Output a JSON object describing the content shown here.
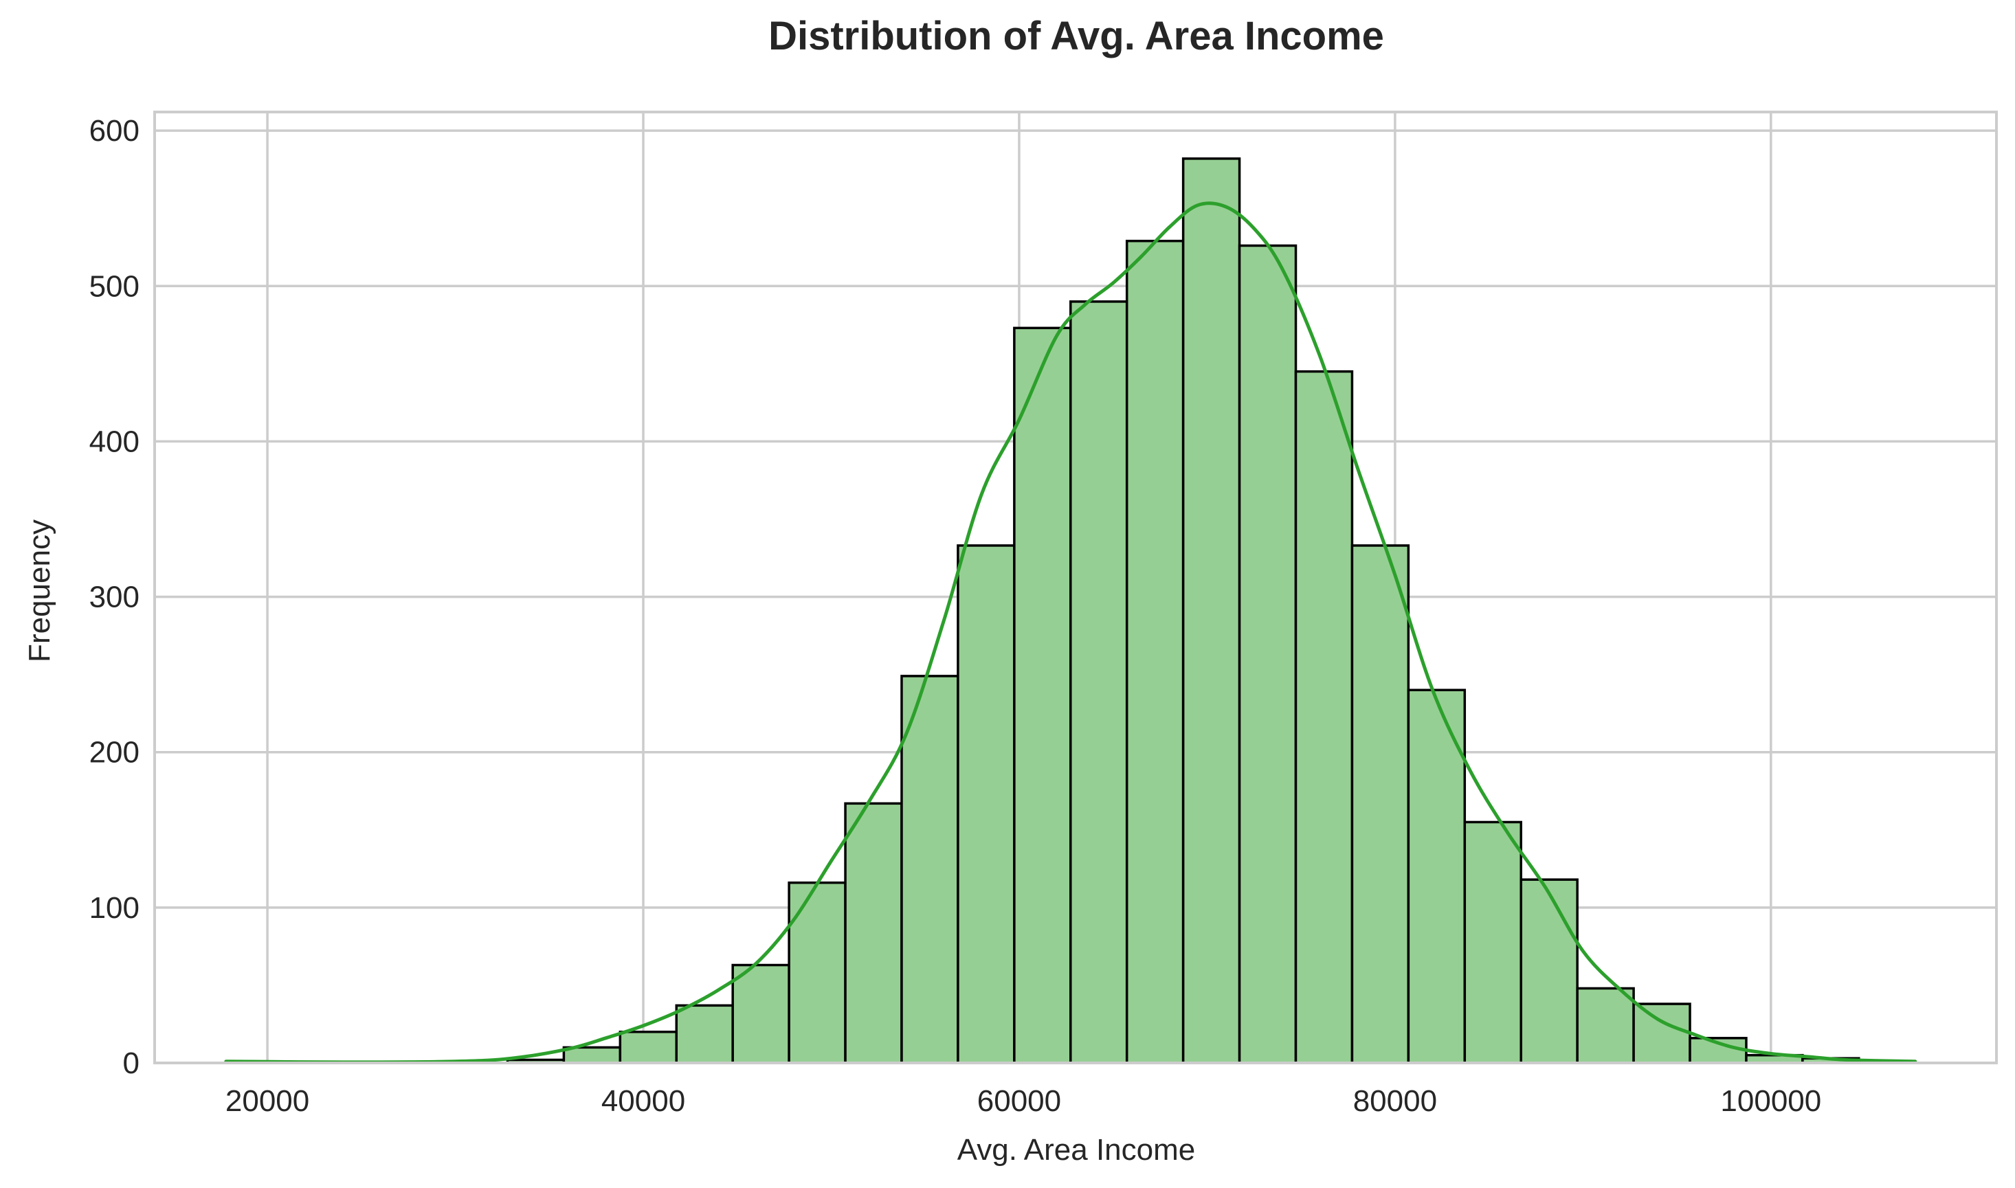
{
  "chart_data": {
    "type": "histogram",
    "title": "Distribution of Avg. Area Income",
    "xlabel": "Avg. Area Income",
    "ylabel": "Frequency",
    "xlim": [
      14000,
      112000
    ],
    "ylim": [
      0,
      612
    ],
    "x_ticks": [
      20000,
      40000,
      60000,
      80000,
      100000
    ],
    "y_ticks": [
      0,
      100,
      200,
      300,
      400,
      500,
      600
    ],
    "grid": true,
    "bar_color": "#96cf93",
    "edge_color": "#000000",
    "kde_color": "#2ca02c",
    "bins": [
      {
        "x0": 17797,
        "x1": 20792,
        "count": 1
      },
      {
        "x0": 20792,
        "x1": 23788,
        "count": 0
      },
      {
        "x0": 23788,
        "x1": 26784,
        "count": 0
      },
      {
        "x0": 26784,
        "x1": 29780,
        "count": 0
      },
      {
        "x0": 29780,
        "x1": 32776,
        "count": 0
      },
      {
        "x0": 32776,
        "x1": 35772,
        "count": 2
      },
      {
        "x0": 35772,
        "x1": 38768,
        "count": 10
      },
      {
        "x0": 38768,
        "x1": 41764,
        "count": 20
      },
      {
        "x0": 41764,
        "x1": 44760,
        "count": 37
      },
      {
        "x0": 44760,
        "x1": 47756,
        "count": 63
      },
      {
        "x0": 47756,
        "x1": 50752,
        "count": 116
      },
      {
        "x0": 50752,
        "x1": 53748,
        "count": 167
      },
      {
        "x0": 53748,
        "x1": 56744,
        "count": 249
      },
      {
        "x0": 56744,
        "x1": 59740,
        "count": 333
      },
      {
        "x0": 59740,
        "x1": 62736,
        "count": 473
      },
      {
        "x0": 62736,
        "x1": 65732,
        "count": 490
      },
      {
        "x0": 65732,
        "x1": 68728,
        "count": 529
      },
      {
        "x0": 68728,
        "x1": 71724,
        "count": 582
      },
      {
        "x0": 71724,
        "x1": 74720,
        "count": 526
      },
      {
        "x0": 74720,
        "x1": 77716,
        "count": 445
      },
      {
        "x0": 77716,
        "x1": 80712,
        "count": 333
      },
      {
        "x0": 80712,
        "x1": 83708,
        "count": 240
      },
      {
        "x0": 83708,
        "x1": 86704,
        "count": 155
      },
      {
        "x0": 86704,
        "x1": 89700,
        "count": 118
      },
      {
        "x0": 89700,
        "x1": 92696,
        "count": 48
      },
      {
        "x0": 92696,
        "x1": 95692,
        "count": 38
      },
      {
        "x0": 95692,
        "x1": 98688,
        "count": 16
      },
      {
        "x0": 98688,
        "x1": 101684,
        "count": 5
      },
      {
        "x0": 101684,
        "x1": 104680,
        "count": 3
      },
      {
        "x0": 104680,
        "x1": 107676,
        "count": 0
      }
    ],
    "kde": {
      "x": [
        17797,
        24000,
        30000,
        33000,
        36000,
        38000,
        40000,
        42000,
        44000,
        46000,
        48000,
        50000,
        52000,
        54000,
        56000,
        58000,
        60000,
        62000,
        63500,
        65000,
        66500,
        68000,
        69500,
        71000,
        72500,
        74000,
        76000,
        78000,
        80000,
        82000,
        84000,
        86000,
        88000,
        90000,
        92000,
        94000,
        96000,
        98000,
        100000,
        102000,
        104000,
        107676
      ],
      "y": [
        1,
        0.5,
        1,
        3,
        9,
        16,
        24,
        34,
        47,
        64,
        92,
        130,
        168,
        212,
        285,
        366,
        414,
        468,
        488,
        502,
        519,
        538,
        552,
        551,
        537,
        511,
        455,
        383,
        314,
        240,
        188,
        148,
        113,
        72,
        47,
        28,
        18,
        10,
        6,
        4,
        2,
        1
      ]
    }
  }
}
